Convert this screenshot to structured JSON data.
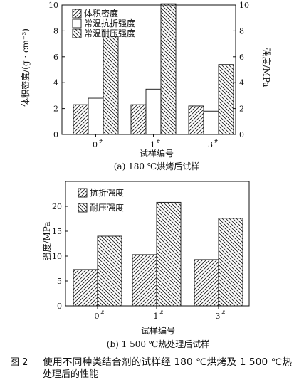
{
  "figure": {
    "number": "图 2",
    "caption_line1": "使用不同种类结合剂的试样经 180 ℃烘烤及 1 500 ℃热",
    "caption_line2": "处理后的性能"
  },
  "chart_data": [
    {
      "type": "bar",
      "title": "",
      "subtitle": "(a) 180 ℃烘烤后试样",
      "xlabel": "试样编号",
      "ylabel": "体积密度/(g · cm⁻³)",
      "ylabel_right": "强度/MPa",
      "categories": [
        "0#",
        "1#",
        "3#"
      ],
      "category_labels": [
        "0",
        "1",
        "3"
      ],
      "category_sups": [
        "#",
        "#",
        "#"
      ],
      "ylim": [
        0,
        10
      ],
      "yticks": [
        0,
        2,
        4,
        6,
        8,
        10
      ],
      "ylim_right": [
        0,
        10
      ],
      "yticks_right": [
        0,
        2,
        4,
        6,
        8,
        10
      ],
      "grid": false,
      "legend_position": "top-left",
      "series": [
        {
          "name": "体积密度",
          "axis": "left",
          "pattern": "hatch-forward",
          "values": [
            2.3,
            2.3,
            2.2
          ]
        },
        {
          "name": "常温抗折强度",
          "axis": "right",
          "pattern": "empty",
          "values": [
            2.8,
            3.5,
            1.8
          ]
        },
        {
          "name": "常温耐压强度",
          "axis": "right",
          "pattern": "hatch-backward",
          "values": [
            7.6,
            10.1,
            5.4
          ]
        }
      ]
    },
    {
      "type": "bar",
      "title": "",
      "subtitle": "(b) 1 500 ℃热处理后试样",
      "xlabel": "试样编号",
      "ylabel": "强度/MPa",
      "categories": [
        "0#",
        "1#",
        "3#"
      ],
      "category_labels": [
        "0",
        "1",
        "3"
      ],
      "category_sups": [
        "#",
        "#",
        "#"
      ],
      "ylim": [
        0,
        25
      ],
      "yticks": [
        0,
        5,
        10,
        15,
        20
      ],
      "grid": false,
      "legend_position": "top-left",
      "series": [
        {
          "name": "抗折强度",
          "pattern": "hatch-forward",
          "values": [
            7.3,
            10.3,
            9.3
          ]
        },
        {
          "name": "耐压强度",
          "pattern": "hatch-backward",
          "values": [
            14.0,
            20.8,
            17.6
          ]
        }
      ]
    }
  ]
}
